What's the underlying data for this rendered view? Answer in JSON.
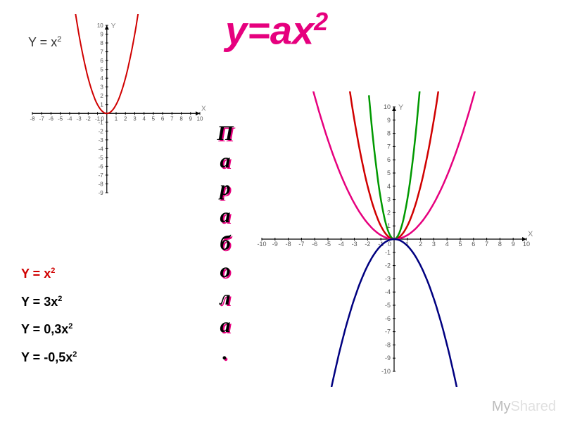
{
  "title": {
    "text": "y=ax",
    "exp": "2",
    "color": "#e6007e",
    "fontsize": 56
  },
  "left_chart_label": {
    "base": "Y = x",
    "exp": "2"
  },
  "equations": [
    {
      "base": "Y = x",
      "exp": "2",
      "color": "#d00000"
    },
    {
      "base": "Y = 3x",
      "exp": "2",
      "color": "#000000"
    },
    {
      "base": "Y = 0,3x",
      "exp": "2",
      "color": "#000000"
    },
    {
      "base": "Y = -0,5x",
      "exp": "2",
      "color": "#000000"
    }
  ],
  "vertical_word": {
    "letters": [
      "П",
      "а",
      "р",
      "а",
      "б",
      "о",
      "л",
      "а",
      "."
    ],
    "color": "#000",
    "shadow": "#e6007e"
  },
  "watermark": {
    "pre": "My",
    "post": "Shared"
  },
  "small_chart": {
    "type": "line",
    "xlim": [
      -8,
      10
    ],
    "ylim": [
      -9,
      10
    ],
    "xtick_step": 1,
    "ytick_step": 1,
    "axis_color": "#000000",
    "tick_fontsize": 8,
    "x_axis_label": "X",
    "y_axis_label": "Y",
    "background_color": "#ffffff",
    "series": [
      {
        "name": "x^2",
        "color": "#d00000",
        "width": 2,
        "a": 1
      }
    ]
  },
  "big_chart": {
    "type": "line",
    "xlim": [
      -10,
      10
    ],
    "ylim": [
      -10,
      10
    ],
    "xtick_step": 1,
    "ytick_step": 1,
    "axis_color": "#000000",
    "tick_fontsize": 9,
    "x_axis_label": "X",
    "y_axis_label": "Y",
    "background_color": "#ffffff",
    "series": [
      {
        "name": "x^2",
        "color": "#d00000",
        "width": 2.5,
        "a": 1
      },
      {
        "name": "3x^2",
        "color": "#009900",
        "width": 2.5,
        "a": 3
      },
      {
        "name": "0.3x^2",
        "color": "#e6007e",
        "width": 2.5,
        "a": 0.3
      },
      {
        "name": "-0.5x^2",
        "color": "#000080",
        "width": 2.5,
        "a": -0.5
      }
    ]
  }
}
